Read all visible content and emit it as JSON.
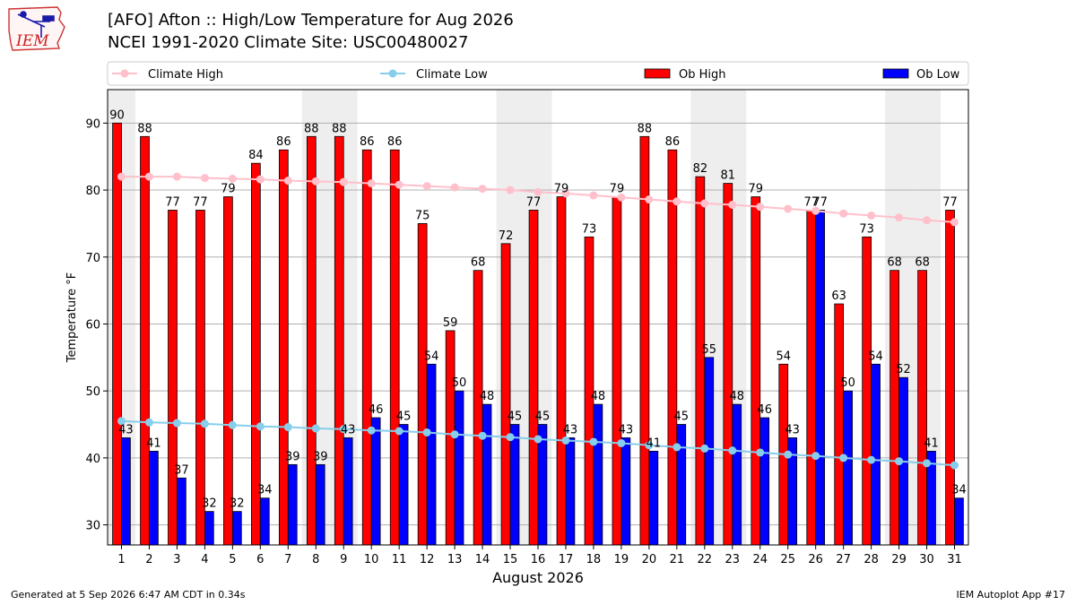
{
  "header": {
    "title_line1": "[AFO] Afton :: High/Low Temperature for Aug 2026",
    "title_line2": "NCEI 1991-2020 Climate Site: USC00480027"
  },
  "logo": {
    "text": "IEM",
    "icon": "iem-iowa-logo-icon"
  },
  "footer": {
    "left": "Generated at 5 Sep 2026 6:47 AM CDT in 0.34s",
    "right": "IEM Autoplot App #17"
  },
  "colors": {
    "ob_high": "#ff0000",
    "ob_low": "#0000ff",
    "climate_high": "#ffc0cb",
    "climate_low": "#87ceeb",
    "weekend_band": "#eeeeee",
    "grid": "#b0b0b0"
  },
  "chart_data": {
    "type": "bar",
    "xlabel": "August 2026",
    "ylabel": "Temperature °F",
    "ylim": [
      27,
      95
    ],
    "yticks": [
      30,
      40,
      50,
      60,
      70,
      80,
      90
    ],
    "grid": "horizontal",
    "legend": "top",
    "categories": [
      "1",
      "2",
      "3",
      "4",
      "5",
      "6",
      "7",
      "8",
      "9",
      "10",
      "11",
      "12",
      "13",
      "14",
      "15",
      "16",
      "17",
      "18",
      "19",
      "20",
      "21",
      "22",
      "23",
      "24",
      "25",
      "26",
      "27",
      "28",
      "29",
      "30",
      "31"
    ],
    "shaded_days": [
      "1",
      "8",
      "9",
      "15",
      "16",
      "22",
      "23",
      "29",
      "30"
    ],
    "series": [
      {
        "name": "Climate High",
        "type": "line",
        "values": [
          82,
          82,
          82,
          81.8,
          81.7,
          81.6,
          81.4,
          81.3,
          81.2,
          81,
          80.8,
          80.6,
          80.4,
          80.2,
          80,
          79.7,
          79.5,
          79.2,
          78.9,
          78.6,
          78.3,
          78,
          77.8,
          77.5,
          77.2,
          76.9,
          76.5,
          76.2,
          75.9,
          75.5,
          75.2
        ]
      },
      {
        "name": "Climate Low",
        "type": "line",
        "values": [
          45.5,
          45.3,
          45.2,
          45.1,
          44.9,
          44.7,
          44.6,
          44.4,
          44.3,
          44.1,
          44,
          43.8,
          43.5,
          43.3,
          43.1,
          42.8,
          42.6,
          42.4,
          42.2,
          41.9,
          41.6,
          41.4,
          41.1,
          40.8,
          40.5,
          40.3,
          40,
          39.7,
          39.5,
          39.2,
          38.9
        ]
      },
      {
        "name": "Ob High",
        "type": "bar",
        "values": [
          90,
          88,
          77,
          77,
          79,
          84,
          86,
          88,
          88,
          86,
          86,
          75,
          59,
          68,
          72,
          77,
          79,
          73,
          79,
          88,
          86,
          82,
          81,
          79,
          54,
          77,
          63,
          73,
          68,
          68,
          77
        ]
      },
      {
        "name": "Ob Low",
        "type": "bar",
        "values": [
          43,
          41,
          37,
          32,
          32,
          34,
          39,
          39,
          43,
          46,
          45,
          54,
          50,
          48,
          45,
          45,
          43,
          48,
          43,
          41,
          45,
          55,
          48,
          46,
          43,
          77,
          50,
          54,
          52,
          41,
          34
        ]
      }
    ]
  }
}
